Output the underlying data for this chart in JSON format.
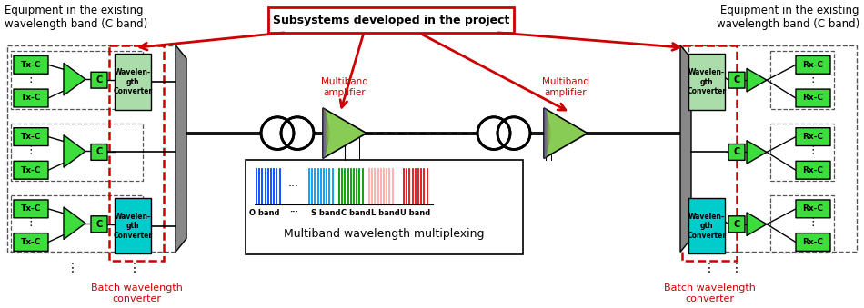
{
  "bg_color": "#ffffff",
  "green": "#3ddd3d",
  "green_dark": "#2db82d",
  "cyan_box": "#00cccc",
  "gray_conv": "#aaddaa",
  "red": "#cc0000",
  "dark_gray": "#555555",
  "title_left": "Equipment in the existing\nwavelength band (C band)",
  "title_right": "Equipment in the existing\nwavelength band (C band)",
  "subsystem_text": "Subsystems developed in the project",
  "batch_text": "Batch wavelength\nconverter",
  "multiband_text": "Multiband wavelength multiplexing",
  "amp1_text": "Multiband\namplifier",
  "amp2_text": "Multiband\namplifier",
  "wc_text": "Wavelen-\ngth\nConverter",
  "figw": 9.5,
  "figh": 3.39,
  "dpi": 100
}
